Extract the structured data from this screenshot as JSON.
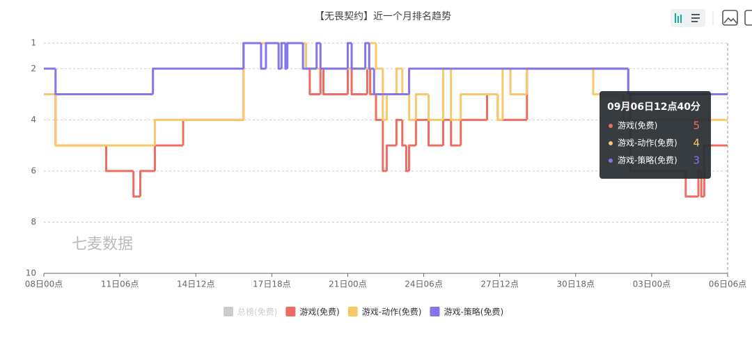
{
  "chart_data": {
    "type": "step-line",
    "title": "【无畏契约】近一个月排名趋势",
    "watermark": "七麦数据",
    "xlim": [
      0,
      702
    ],
    "xticks": [
      {
        "value": 0,
        "label": "08日00点"
      },
      {
        "value": 78,
        "label": "11日06点"
      },
      {
        "value": 156,
        "label": "14日12点"
      },
      {
        "value": 234,
        "label": "17日18点"
      },
      {
        "value": 312,
        "label": "21日00点"
      },
      {
        "value": 390,
        "label": "24日06点"
      },
      {
        "value": 468,
        "label": "27日12点"
      },
      {
        "value": 546,
        "label": "30日18点"
      },
      {
        "value": 624,
        "label": "03日00点"
      },
      {
        "value": 702,
        "label": "06日06点"
      }
    ],
    "ylim": [
      10,
      1
    ],
    "yticks": [
      1,
      2,
      4,
      6,
      8,
      10
    ],
    "grid": true,
    "series": [
      {
        "name": "总榜(免费)",
        "color": "#cccccc",
        "hidden": true,
        "x": [],
        "values": []
      },
      {
        "name": "游戏(免费)",
        "color": "#ee6c62",
        "x": [
          0,
          12,
          64,
          92,
          99,
          114,
          143,
          205,
          269,
          273,
          284,
          287,
          312,
          316,
          332,
          335,
          341,
          348,
          352,
          362,
          368,
          372,
          375,
          382,
          395,
          410,
          418,
          428,
          455,
          466,
          496,
          600,
          602,
          659,
          672,
          675,
          678
        ],
        "values": [
          3,
          5,
          6,
          7,
          6,
          5,
          4,
          1,
          2,
          3,
          2,
          3,
          2,
          3,
          2,
          3,
          4,
          6,
          5,
          4,
          5,
          6,
          5,
          4,
          5,
          4,
          5,
          4,
          3,
          4,
          2,
          3,
          6,
          7,
          6,
          7,
          5
        ]
      },
      {
        "name": "游戏-动作(免费)",
        "color": "#f8c86a",
        "x": [
          0,
          12,
          114,
          205,
          269,
          334,
          341,
          348,
          352,
          362,
          368,
          375,
          382,
          395,
          410,
          418,
          428,
          466,
          471,
          479,
          496,
          564,
          595
        ],
        "values": [
          3,
          5,
          4,
          1,
          2,
          1,
          2,
          4,
          3,
          2,
          3,
          4,
          3,
          4,
          2,
          4,
          3,
          4,
          2,
          3,
          2,
          3,
          4
        ]
      },
      {
        "name": "游戏-策略(免费)",
        "color": "#8575ea",
        "x": [
          0,
          12,
          112,
          205,
          223,
          228,
          241,
          244,
          248,
          250,
          266,
          280,
          284,
          312,
          316,
          330,
          334,
          339,
          375,
          600
        ],
        "values": [
          2,
          3,
          2,
          1,
          2,
          1,
          2,
          1,
          2,
          1,
          2,
          1,
          2,
          1,
          2,
          1,
          2,
          3,
          2,
          3
        ]
      }
    ],
    "tooltip": {
      "title": "09月06日12点40分",
      "items": [
        {
          "name": "游戏(免费)",
          "value": 5,
          "color": "#ee6c62"
        },
        {
          "name": "游戏-动作(免费)",
          "value": 4,
          "color": "#f8c86a"
        },
        {
          "name": "游戏-策略(免费)",
          "value": 3,
          "color": "#8575ea"
        }
      ]
    }
  }
}
